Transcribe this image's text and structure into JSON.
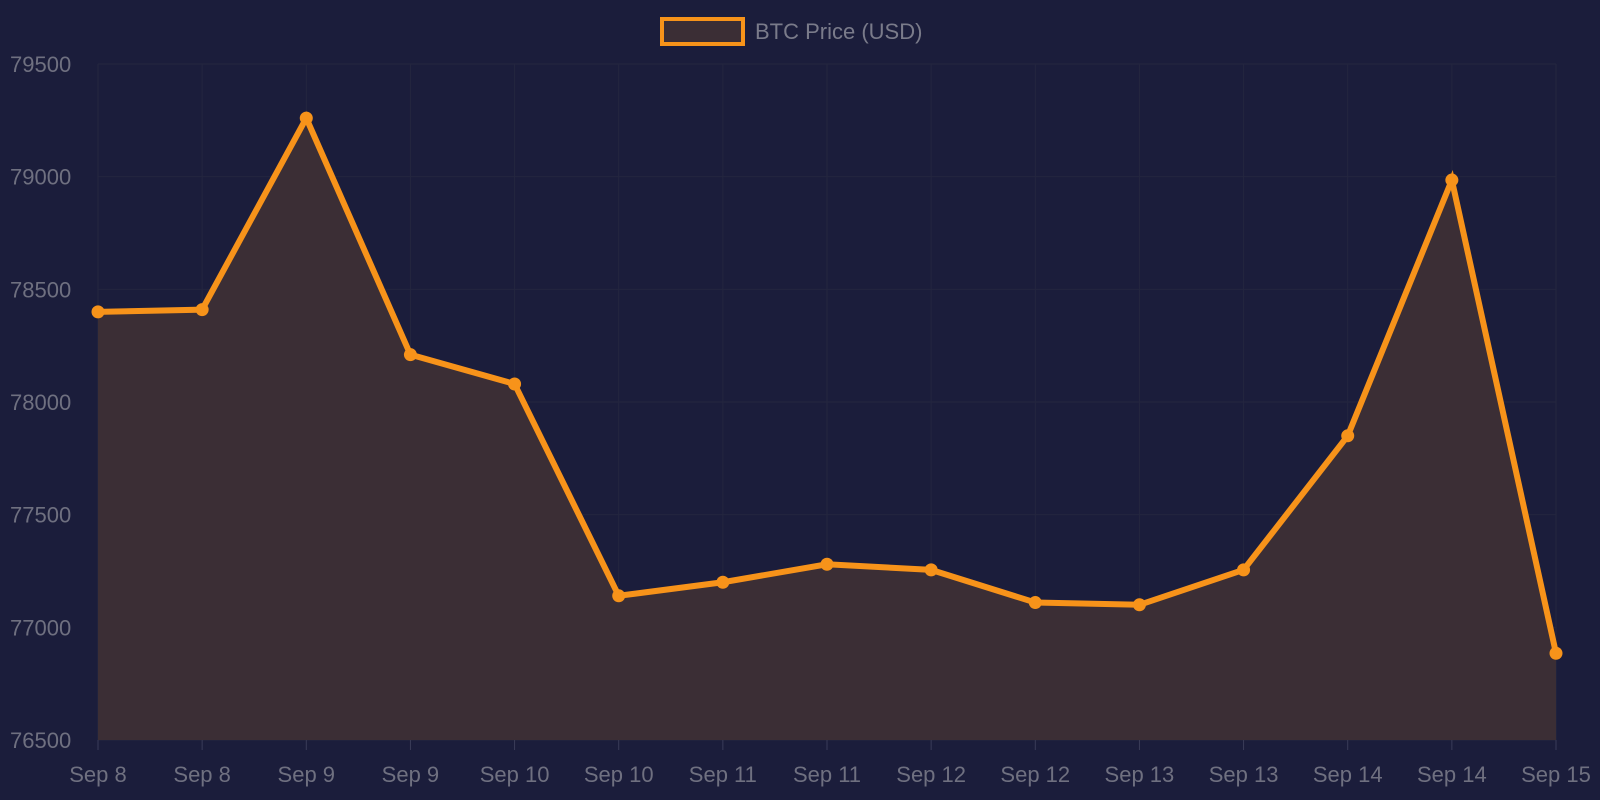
{
  "chart_data": {
    "type": "area",
    "categories": [
      "Sep 8",
      "Sep 8",
      "Sep 9",
      "Sep 9",
      "Sep 10",
      "Sep 10",
      "Sep 11",
      "Sep 11",
      "Sep 12",
      "Sep 12",
      "Sep 13",
      "Sep 13",
      "Sep 14",
      "Sep 14",
      "Sep 15"
    ],
    "series": [
      {
        "name": "BTC Price (USD)",
        "values": [
          78400,
          78410,
          79260,
          78210,
          78080,
          77140,
          77200,
          77280,
          77255,
          77110,
          77100,
          77255,
          77850,
          78985,
          76885
        ]
      }
    ],
    "ylim": [
      76500,
      79500
    ],
    "yticks": [
      79500,
      79000,
      78500,
      78000,
      77500,
      77000,
      76500
    ],
    "title": "",
    "xlabel": "",
    "ylabel": "",
    "grid": true,
    "legend_position": "top-center",
    "colors": {
      "background": "#1b1d3b",
      "line": "#f7931a",
      "fill": "#3b2e35",
      "grid": "#24263f",
      "tick_text": "#6f7080"
    }
  }
}
